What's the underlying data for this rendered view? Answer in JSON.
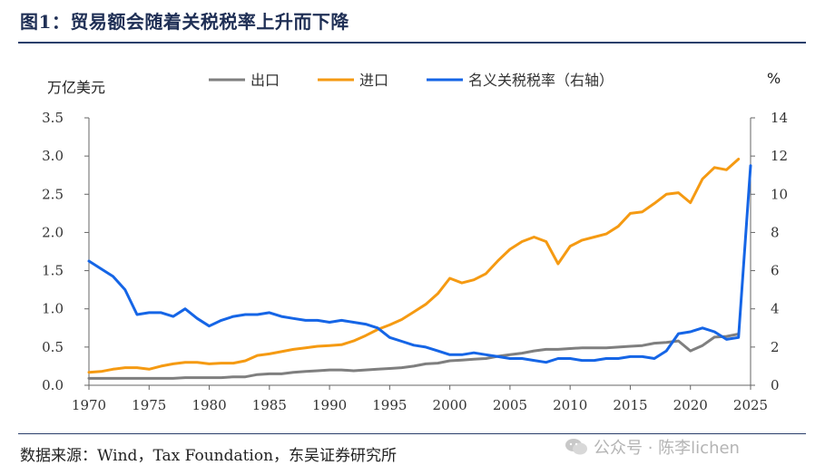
{
  "header": {
    "title": "图1：贸易额会随着关税税率上升而下降"
  },
  "source": "数据来源：Wind，Tax Foundation，东吴证券研究所",
  "watermark": {
    "text": "公众号 · 陈李lichen",
    "icon": "wechat-icon"
  },
  "colors": {
    "exports": "#7f7f7f",
    "imports": "#f59a12",
    "tariff": "#1565e6",
    "axis": "#666666",
    "title": "#1f2f55"
  },
  "chart_data": {
    "type": "line",
    "title": "贸易额会随着关税税率上升而下降",
    "left_unit": "万亿美元",
    "right_unit": "%",
    "xlim": [
      1970,
      2025
    ],
    "ylim_left": [
      0,
      3.5
    ],
    "ylim_right": [
      0,
      14
    ],
    "x_ticks": [
      1970,
      1975,
      1980,
      1985,
      1990,
      1995,
      2000,
      2005,
      2010,
      2015,
      2020,
      2025
    ],
    "y_ticks_left": [
      "0.0",
      "0.5",
      "1.0",
      "1.5",
      "2.0",
      "2.5",
      "3.0",
      "3.5"
    ],
    "y_ticks_right": [
      "0",
      "2",
      "4",
      "6",
      "8",
      "10",
      "12",
      "14"
    ],
    "legend_position": "top",
    "series": [
      {
        "name": "出口",
        "axis": "left",
        "color": "#7f7f7f",
        "x": [
          1970,
          1971,
          1972,
          1973,
          1974,
          1975,
          1976,
          1977,
          1978,
          1979,
          1980,
          1981,
          1982,
          1983,
          1984,
          1985,
          1986,
          1987,
          1988,
          1989,
          1990,
          1991,
          1992,
          1993,
          1994,
          1995,
          1996,
          1997,
          1998,
          1999,
          2000,
          2001,
          2002,
          2003,
          2004,
          2005,
          2006,
          2007,
          2008,
          2009,
          2010,
          2011,
          2012,
          2013,
          2014,
          2015,
          2016,
          2017,
          2018,
          2019,
          2020,
          2021,
          2022,
          2023,
          2024
        ],
        "values": [
          0.09,
          0.09,
          0.09,
          0.09,
          0.09,
          0.09,
          0.09,
          0.09,
          0.1,
          0.1,
          0.1,
          0.1,
          0.11,
          0.11,
          0.14,
          0.15,
          0.15,
          0.17,
          0.18,
          0.19,
          0.2,
          0.2,
          0.19,
          0.2,
          0.21,
          0.22,
          0.23,
          0.25,
          0.28,
          0.29,
          0.32,
          0.33,
          0.34,
          0.35,
          0.38,
          0.4,
          0.42,
          0.45,
          0.47,
          0.47,
          0.48,
          0.49,
          0.49,
          0.49,
          0.5,
          0.51,
          0.52,
          0.55,
          0.56,
          0.58,
          0.45,
          0.52,
          0.63,
          0.64,
          0.67
        ]
      },
      {
        "name": "进口",
        "axis": "left",
        "color": "#f59a12",
        "x": [
          1970,
          1971,
          1972,
          1973,
          1974,
          1975,
          1976,
          1977,
          1978,
          1979,
          1980,
          1981,
          1982,
          1983,
          1984,
          1985,
          1986,
          1987,
          1988,
          1989,
          1990,
          1991,
          1992,
          1993,
          1994,
          1995,
          1996,
          1997,
          1998,
          1999,
          2000,
          2001,
          2002,
          2003,
          2004,
          2005,
          2006,
          2007,
          2008,
          2009,
          2010,
          2011,
          2012,
          2013,
          2014,
          2015,
          2016,
          2017,
          2018,
          2019,
          2020,
          2021,
          2022,
          2023,
          2024
        ],
        "values": [
          0.17,
          0.18,
          0.21,
          0.23,
          0.23,
          0.21,
          0.25,
          0.28,
          0.3,
          0.3,
          0.28,
          0.29,
          0.29,
          0.32,
          0.39,
          0.41,
          0.44,
          0.47,
          0.49,
          0.51,
          0.52,
          0.53,
          0.58,
          0.65,
          0.73,
          0.79,
          0.86,
          0.96,
          1.06,
          1.2,
          1.4,
          1.34,
          1.38,
          1.46,
          1.63,
          1.78,
          1.88,
          1.94,
          1.88,
          1.59,
          1.82,
          1.9,
          1.94,
          1.98,
          2.08,
          2.25,
          2.27,
          2.38,
          2.5,
          2.52,
          2.39,
          2.7,
          2.85,
          2.82,
          2.96
        ]
      },
      {
        "name": "名义关税税率（右轴）",
        "axis": "right",
        "color": "#1565e6",
        "x": [
          1970,
          1971,
          1972,
          1973,
          1974,
          1975,
          1976,
          1977,
          1978,
          1979,
          1980,
          1981,
          1982,
          1983,
          1984,
          1985,
          1986,
          1987,
          1988,
          1989,
          1990,
          1991,
          1992,
          1993,
          1994,
          1995,
          1996,
          1997,
          1998,
          1999,
          2000,
          2001,
          2002,
          2003,
          2004,
          2005,
          2006,
          2007,
          2008,
          2009,
          2010,
          2011,
          2012,
          2013,
          2014,
          2015,
          2016,
          2017,
          2018,
          2019,
          2020,
          2021,
          2022,
          2023,
          2024,
          2025
        ],
        "values": [
          6.5,
          6.1,
          5.7,
          5.0,
          3.7,
          3.8,
          3.8,
          3.6,
          4.0,
          3.5,
          3.1,
          3.4,
          3.6,
          3.7,
          3.7,
          3.8,
          3.6,
          3.5,
          3.4,
          3.4,
          3.3,
          3.4,
          3.3,
          3.2,
          3.0,
          2.5,
          2.3,
          2.1,
          2.0,
          1.8,
          1.6,
          1.6,
          1.7,
          1.6,
          1.5,
          1.4,
          1.4,
          1.3,
          1.2,
          1.4,
          1.4,
          1.3,
          1.3,
          1.4,
          1.4,
          1.5,
          1.5,
          1.4,
          1.8,
          2.7,
          2.8,
          3.0,
          2.8,
          2.4,
          2.5,
          11.5
        ]
      }
    ]
  }
}
